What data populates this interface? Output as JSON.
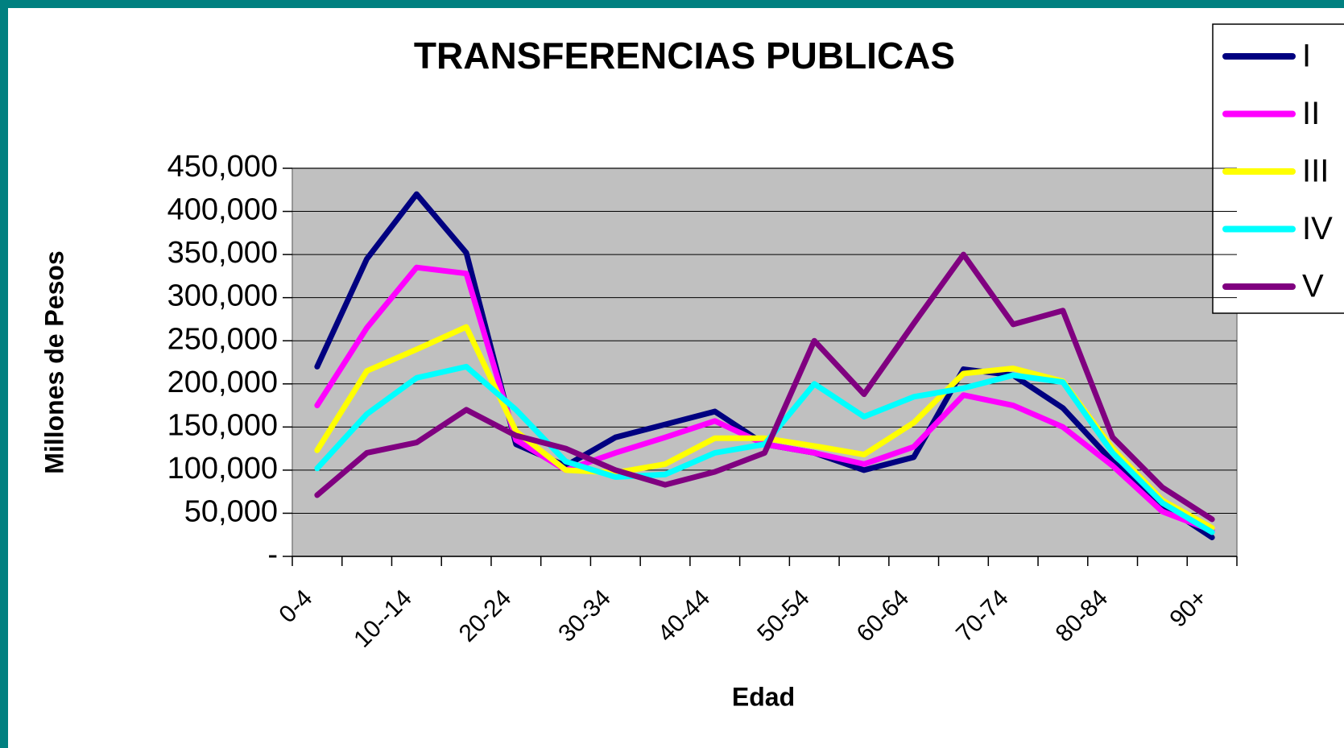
{
  "chart_data": {
    "type": "line",
    "title": "TRANSFERENCIAS PUBLICAS",
    "x_label": "Edad",
    "y_label": "Millones de Pesos",
    "categories": [
      "0-4",
      null,
      "10--14",
      null,
      "20-24",
      null,
      "30-34",
      null,
      "40-44",
      null,
      "50-54",
      null,
      "60-64",
      null,
      "70-74",
      null,
      "80-84",
      null,
      "90+"
    ],
    "series": [
      {
        "name": "I",
        "color": "#000080",
        "values": [
          220000,
          345000,
          420000,
          352000,
          130000,
          105000,
          138000,
          153000,
          168000,
          130000,
          120000,
          100000,
          115000,
          217000,
          210000,
          172000,
          110000,
          60000,
          22000
        ]
      },
      {
        "name": "II",
        "color": "#ff00ff",
        "values": [
          175000,
          265000,
          335000,
          328000,
          135000,
          100000,
          120000,
          138000,
          157000,
          130000,
          120000,
          107000,
          127000,
          187000,
          175000,
          150000,
          105000,
          52000,
          30000
        ]
      },
      {
        "name": "III",
        "color": "#ffff00",
        "values": [
          123000,
          215000,
          240000,
          266000,
          145000,
          100000,
          97000,
          107000,
          137000,
          137000,
          128000,
          118000,
          155000,
          212000,
          218000,
          203000,
          125000,
          65000,
          33000
        ]
      },
      {
        "name": "IV",
        "color": "#00ffff",
        "values": [
          102000,
          165000,
          207000,
          220000,
          170000,
          110000,
          92000,
          95000,
          120000,
          130000,
          200000,
          162000,
          185000,
          195000,
          210000,
          202000,
          120000,
          62000,
          28000
        ]
      },
      {
        "name": "V",
        "color": "#800080",
        "values": [
          71000,
          120000,
          132000,
          170000,
          140000,
          125000,
          100000,
          83000,
          98000,
          120000,
          250000,
          188000,
          270000,
          350000,
          269000,
          285000,
          138000,
          80000,
          43000
        ]
      }
    ],
    "ylim": [
      0,
      450000
    ],
    "yticks": [
      {
        "value": 0,
        "label": "-"
      },
      {
        "value": 50000,
        "label": "50,000"
      },
      {
        "value": 100000,
        "label": "100,000"
      },
      {
        "value": 150000,
        "label": "150,000"
      },
      {
        "value": 200000,
        "label": "200,000"
      },
      {
        "value": 250000,
        "label": "250,000"
      },
      {
        "value": 300000,
        "label": "300,000"
      },
      {
        "value": 350000,
        "label": "350,000"
      },
      {
        "value": 400000,
        "label": "400,000"
      },
      {
        "value": 450000,
        "label": "450,000"
      }
    ],
    "grid": true,
    "legend": "top-right"
  }
}
